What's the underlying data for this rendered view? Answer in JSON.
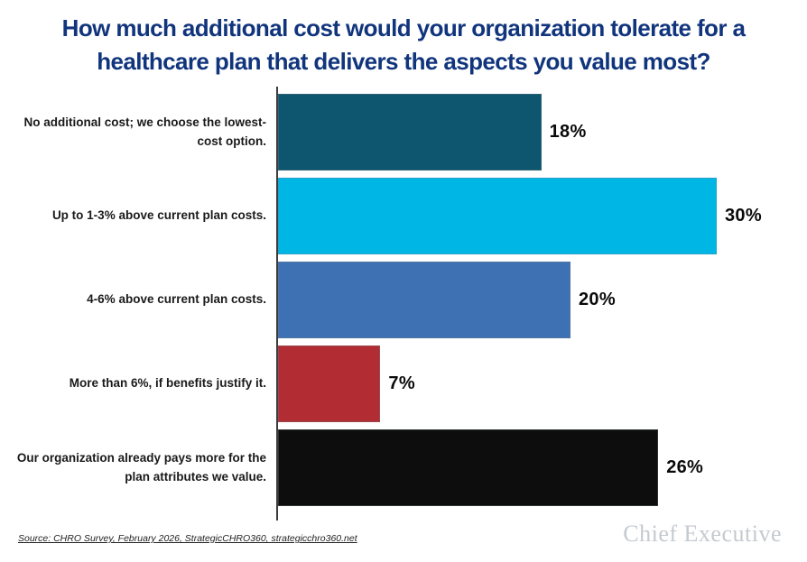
{
  "title": {
    "line1": "How much additional cost would your organization tolerate for a",
    "line2": "healthcare plan that delivers the aspects you value most?"
  },
  "colors": {
    "title": "#11357D",
    "axis": "#3d3d3d",
    "category_label": "#1a1a1a",
    "value_label": "#0a0a0a",
    "source_text": "#222222",
    "brand": "#c5cad0",
    "background": "#ffffff"
  },
  "chart_data": {
    "type": "bar",
    "orientation": "horizontal",
    "title": "How much additional cost would your organization tolerate for a healthcare plan that delivers the aspects you value most?",
    "categories": [
      "No additional cost; we choose the lowest-cost option.",
      "Up to 1-3% above current plan costs.",
      "4-6% above current plan costs.",
      "More than 6%, if benefits justify it.",
      "Our organization already pays more for the plan attributes we value."
    ],
    "values": [
      18,
      30,
      20,
      7,
      26
    ],
    "value_labels": [
      "18%",
      "30%",
      "20%",
      "7%",
      "26%"
    ],
    "bar_colors": [
      "#0E5670",
      "#00B6E5",
      "#3E71B3",
      "#B22D33",
      "#0D0D0D"
    ],
    "xlabel": "",
    "ylabel": "",
    "xlim": [
      0,
      34
    ],
    "grid": false,
    "legend": false
  },
  "footer": {
    "source": "Source: CHRO Survey, February 2026, StrategicCHRO360, strategicchro360.net",
    "brand": "Chief Executive"
  }
}
